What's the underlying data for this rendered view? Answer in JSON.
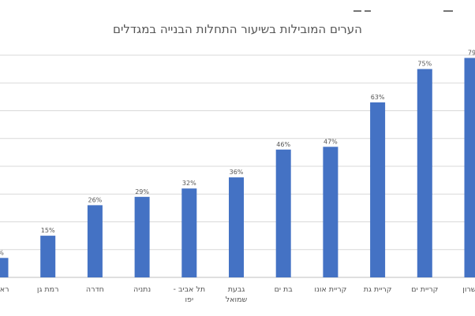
{
  "chart_data": {
    "type": "bar",
    "title": "הערים המובילות בשיעור התחלות הבנייה במגדלים",
    "xlabel": "",
    "ylabel": "",
    "ylim": [
      0,
      80
    ],
    "grid": true,
    "legend": "none",
    "bar_color": "#4472C4",
    "grid_color": "#d9d9d9",
    "categories": [
      [
        "ראשו"
      ],
      [
        "רמת גן"
      ],
      [
        "חדרה"
      ],
      [
        "נתניה"
      ],
      [
        "תל אביב -",
        "יפו"
      ],
      [
        "גבעת",
        "שמואל"
      ],
      [
        "בת ים"
      ],
      [
        "קריית אונו"
      ],
      [
        "קריית גת"
      ],
      [
        "קריית ים"
      ],
      [
        "השרון"
      ]
    ],
    "values": [
      7,
      15,
      26,
      29,
      32,
      36,
      46,
      47,
      63,
      75,
      79
    ],
    "data_labels": [
      "%",
      "15%",
      "26%",
      "29%",
      "32%",
      "36%",
      "46%",
      "47%",
      "63%",
      "75%",
      "79"
    ]
  }
}
